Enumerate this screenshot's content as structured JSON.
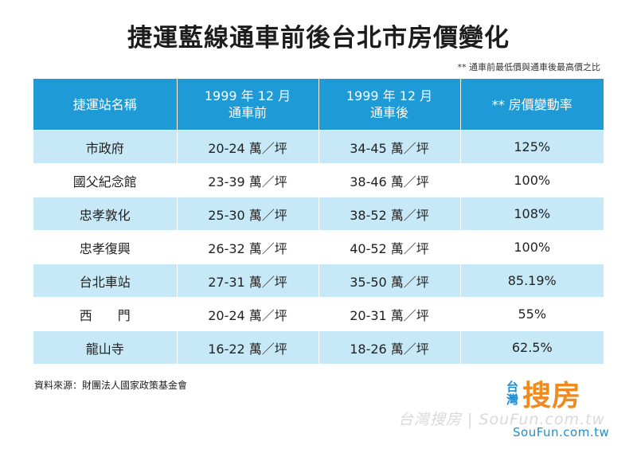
{
  "title": "捷運藍線通車前後台北市房價變化",
  "note": "** 通車前最低價與通車後最高價之比",
  "table": {
    "headers": [
      [
        "捷運站名稱"
      ],
      [
        "1999 年 12 月",
        "通車前"
      ],
      [
        "1999 年 12 月",
        "通車後"
      ],
      [
        "** 房價變動率"
      ]
    ],
    "rows": [
      [
        "市政府",
        "20-24 萬／坪",
        "34-45 萬／坪",
        "125%"
      ],
      [
        "國父紀念館",
        "23-39 萬／坪",
        "38-46 萬／坪",
        "100%"
      ],
      [
        "忠孝敦化",
        "25-30 萬／坪",
        "38-52 萬／坪",
        "108%"
      ],
      [
        "忠孝復興",
        "26-32 萬／坪",
        "40-52 萬／坪",
        "100%"
      ],
      [
        "台北車站",
        "27-31 萬／坪",
        "35-50 萬／坪",
        "85.19%"
      ],
      [
        "西　　門",
        "20-24 萬／坪",
        "20-31 萬／坪",
        "55%"
      ],
      [
        "龍山寺",
        "16-22 萬／坪",
        "18-26 萬／坪",
        "62.5%"
      ]
    ]
  },
  "source": "資料來源：財團法人國家政策基金會",
  "logo": {
    "vertical": "台灣",
    "main": "搜房",
    "url": "SouFun.com.tw"
  },
  "watermark": "台灣搜房 | SouFun.com.tw",
  "colors": {
    "header_bg": "#1e9ad6",
    "row_alt_bg": "#c7e8f6",
    "logo_orange": "#ef8a1e",
    "logo_blue": "#1d8fd0"
  }
}
